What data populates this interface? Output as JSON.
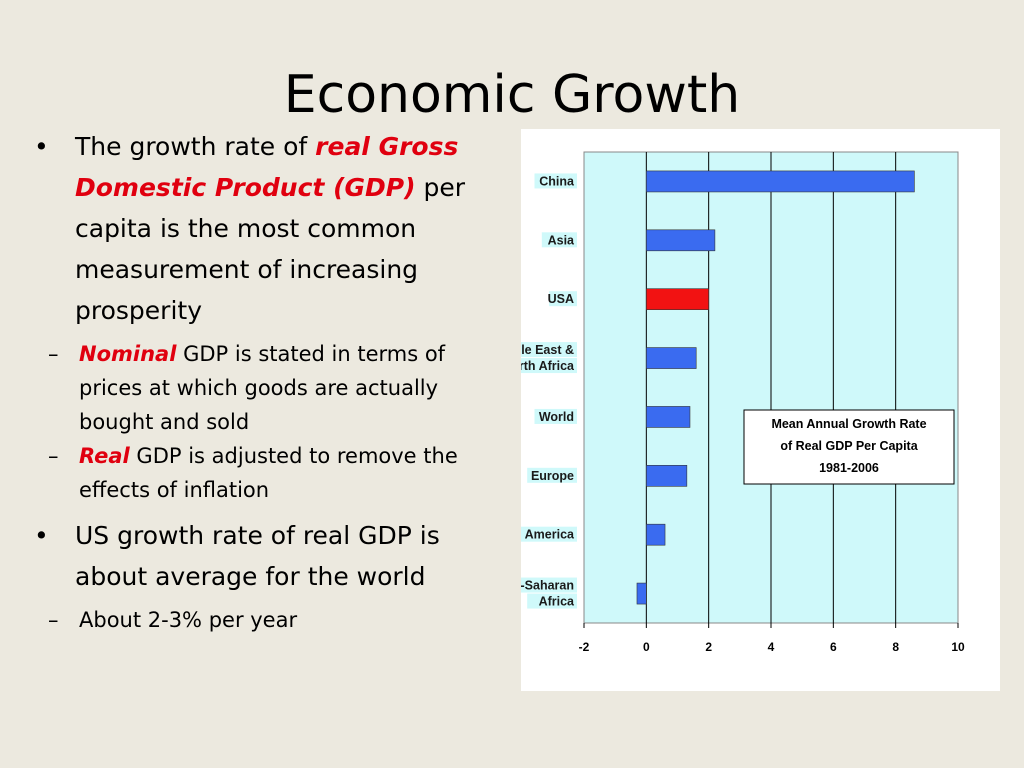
{
  "title": "Economic Growth",
  "bullets": [
    {
      "marker": "•",
      "parts": [
        {
          "text": "The growth rate of ",
          "style": "plain"
        },
        {
          "text": "real Gross Domestic Product (GDP)",
          "style": "red"
        },
        {
          "text": " per capita is the most common measurement of increasing prosperity",
          "style": "plain"
        }
      ],
      "sub": [
        {
          "marker": "–",
          "parts": [
            {
              "text": "Nominal",
              "style": "red"
            },
            {
              "text": " GDP is stated in terms of prices at which goods are actually bought and sold",
              "style": "plain"
            }
          ]
        },
        {
          "marker": "–",
          "parts": [
            {
              "text": "Real",
              "style": "red"
            },
            {
              "text": " GDP is adjusted to remove the effects of inflation",
              "style": "plain"
            }
          ]
        }
      ]
    },
    {
      "marker": "•",
      "parts": [
        {
          "text": "US growth rate of real GDP is about average for the world",
          "style": "plain"
        }
      ],
      "sub": [
        {
          "marker": "–",
          "parts": [
            {
              "text": "About 2-3% per year",
              "style": "plain"
            }
          ]
        }
      ]
    }
  ],
  "chart_data": {
    "type": "bar",
    "orientation": "horizontal",
    "legend_lines": [
      "Mean Annual Growth Rate",
      "of Real GDP Per Capita",
      "1981-2006"
    ],
    "categories": [
      [
        "China"
      ],
      [
        "Asia"
      ],
      [
        "USA"
      ],
      [
        "Middle East &",
        "North Africa"
      ],
      [
        "World"
      ],
      [
        "Europe"
      ],
      [
        "South America"
      ],
      [
        "Sub-Saharan",
        "Africa"
      ]
    ],
    "values": [
      8.6,
      2.2,
      2.0,
      1.6,
      1.4,
      1.3,
      0.6,
      -0.3
    ],
    "highlight_index": 2,
    "xlim": [
      -2,
      10
    ],
    "xticks": [
      "-2",
      "0",
      "2",
      "4",
      "6",
      "8",
      "10"
    ],
    "grid": "vertical",
    "legend_position": "right-middle",
    "colors": {
      "bar": "#3A6BF0",
      "highlight": "#F21212",
      "plot_bg": "#CFF9FA",
      "grid": "#000000"
    }
  }
}
